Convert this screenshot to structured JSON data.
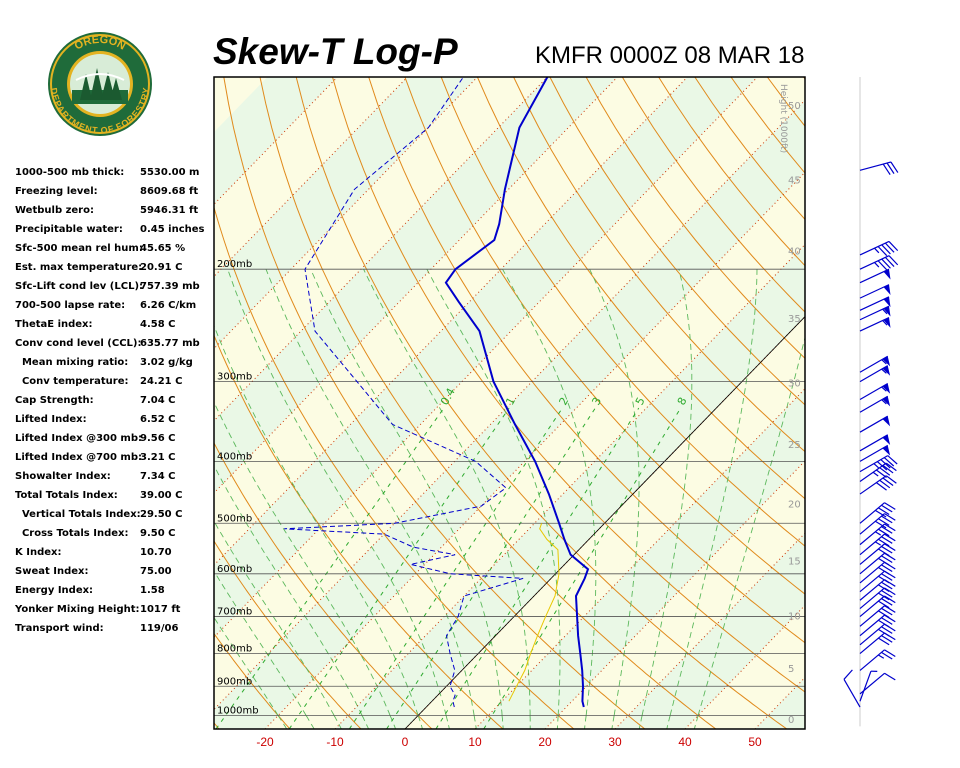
{
  "header": {
    "title": "Skew-T Log-P",
    "subtitle": "KMFR 0000Z 08 MAR 18"
  },
  "logo": {
    "top_text": "OREGON",
    "bottom_text": "DEPARTMENT OF FORESTRY",
    "ring_color": "#1f6b3a",
    "gold_color": "#e3b321"
  },
  "indices": [
    {
      "label": "1000-500 mb thick:",
      "value": "5530.00 m"
    },
    {
      "label": "Freezing level:",
      "value": "8609.68 ft"
    },
    {
      "label": "Wetbulb zero:",
      "value": "5946.31 ft"
    },
    {
      "label": "Precipitable water:",
      "value": "0.45 inches"
    },
    {
      "label": "Sfc-500 mean rel hum:",
      "value": "45.65 %"
    },
    {
      "label": "Est. max temperature:",
      "value": "20.91 C"
    },
    {
      "label": "Sfc-Lift cond lev (LCL):",
      "value": "757.39 mb"
    },
    {
      "label": "700-500 lapse rate:",
      "value": "6.26 C/km"
    },
    {
      "label": "ThetaE index:",
      "value": "4.58 C"
    },
    {
      "label": "Conv cond level (CCL):",
      "value": "635.77 mb"
    },
    {
      "label": "  Mean mixing ratio:",
      "value": "3.02 g/kg"
    },
    {
      "label": "  Conv temperature:",
      "value": "24.21 C"
    },
    {
      "label": "Cap Strength:",
      "value": "7.04 C"
    },
    {
      "label": "Lifted Index:",
      "value": "6.52 C"
    },
    {
      "label": "Lifted Index @300 mb:",
      "value": "9.56 C"
    },
    {
      "label": "Lifted Index @700 mb:",
      "value": "3.21 C"
    },
    {
      "label": "Showalter Index:",
      "value": "7.34 C"
    },
    {
      "label": "Total Totals Index:",
      "value": "39.00 C"
    },
    {
      "label": "  Vertical Totals Index:",
      "value": "29.50 C"
    },
    {
      "label": "  Cross Totals Index:",
      "value": "9.50 C"
    },
    {
      "label": "K Index:",
      "value": "10.70"
    },
    {
      "label": "Sweat Index:",
      "value": "75.00"
    },
    {
      "label": "Energy Index:",
      "value": "1.58"
    },
    {
      "label": "Yonker Mixing Height:",
      "value": "1017 ft"
    },
    {
      "label": "Transport wind:",
      "value": "119/06"
    }
  ],
  "chart_data": {
    "type": "line",
    "title": "Skew-T Log-P",
    "subtitle": "KMFR 0000Z 08 MAR 18",
    "xlabel": "",
    "ylabel": "",
    "xlim": [
      -29,
      56
    ],
    "ylim": [
      1050,
      100
    ],
    "x_ticks": [
      -20,
      -10,
      0,
      10,
      20,
      30,
      40,
      50
    ],
    "x_tick_labels": [
      "-20",
      "-10",
      "0",
      "10",
      "20",
      "30",
      "40",
      "50"
    ],
    "pressure_levels": [
      200,
      300,
      400,
      500,
      600,
      700,
      800,
      900,
      1000
    ],
    "pressure_labels": [
      "200mb",
      "300mb",
      "400mb",
      "500mb",
      "600mb",
      "700mb",
      "800mb",
      "900mb",
      "1000mb"
    ],
    "height_scale_title": "Height (1000ft)",
    "height_ticks": [
      0,
      5,
      10,
      15,
      20,
      25,
      30,
      35,
      40,
      45,
      50
    ],
    "height_tick_labels": [
      "0",
      "5",
      "10",
      "15",
      "20",
      "25",
      "30",
      "35",
      "40",
      "45",
      "50"
    ],
    "mixing_ratio_labels": [
      "0.4",
      "1",
      "2",
      "3",
      "5",
      "8"
    ],
    "series": [
      {
        "name": "",
        "color": "#0000cc",
        "style": "solid",
        "points": [
          {
            "p": 970,
            "t": 22.5
          },
          {
            "p": 950,
            "t": 21.5
          },
          {
            "p": 900,
            "t": 19.5
          },
          {
            "p": 850,
            "t": 17.2
          },
          {
            "p": 800,
            "t": 14.6
          },
          {
            "p": 750,
            "t": 11.8
          },
          {
            "p": 700,
            "t": 9.0
          },
          {
            "p": 650,
            "t": 6.0
          },
          {
            "p": 610,
            "t": 4.8
          },
          {
            "p": 590,
            "t": 4.0
          },
          {
            "p": 560,
            "t": -0.5
          },
          {
            "p": 530,
            "t": -3.5
          },
          {
            "p": 500,
            "t": -6.5
          },
          {
            "p": 450,
            "t": -12.0
          },
          {
            "p": 400,
            "t": -18.5
          },
          {
            "p": 350,
            "t": -26.5
          },
          {
            "p": 300,
            "t": -35.5
          },
          {
            "p": 250,
            "t": -44.5
          },
          {
            "p": 225,
            "t": -51.5
          },
          {
            "p": 210,
            "t": -56.0
          },
          {
            "p": 200,
            "t": -56.5
          },
          {
            "p": 180,
            "t": -55.0
          },
          {
            "p": 170,
            "t": -56.5
          },
          {
            "p": 150,
            "t": -60.5
          },
          {
            "p": 120,
            "t": -67.0
          },
          {
            "p": 100,
            "t": -70.0
          }
        ]
      },
      {
        "name": "",
        "color": "#0000cc",
        "style": "dashed",
        "points": [
          {
            "p": 970,
            "t": 4.0
          },
          {
            "p": 950,
            "t": 3.0
          },
          {
            "p": 930,
            "t": 2.5
          },
          {
            "p": 900,
            "t": 0.5
          },
          {
            "p": 850,
            "t": -1.0
          },
          {
            "p": 800,
            "t": -4.0
          },
          {
            "p": 750,
            "t": -7.0
          },
          {
            "p": 700,
            "t": -8.0
          },
          {
            "p": 650,
            "t": -10.0
          },
          {
            "p": 610,
            "t": -4.0
          },
          {
            "p": 600,
            "t": -15.0
          },
          {
            "p": 580,
            "t": -22.0
          },
          {
            "p": 560,
            "t": -17.0
          },
          {
            "p": 545,
            "t": -24.0
          },
          {
            "p": 520,
            "t": -30.0
          },
          {
            "p": 510,
            "t": -45.0
          },
          {
            "p": 500,
            "t": -30.0
          },
          {
            "p": 470,
            "t": -20.0
          },
          {
            "p": 440,
            "t": -19.0
          },
          {
            "p": 400,
            "t": -27.0
          },
          {
            "p": 350,
            "t": -44.0
          },
          {
            "p": 300,
            "t": -55.0
          },
          {
            "p": 250,
            "t": -68.0
          },
          {
            "p": 200,
            "t": -78.0
          },
          {
            "p": 150,
            "t": -82.0
          },
          {
            "p": 120,
            "t": -80.0
          },
          {
            "p": 100,
            "t": -82.0
          }
        ]
      },
      {
        "name": "",
        "color": "#e8c800",
        "style": "solid",
        "points": [
          {
            "p": 950,
            "t": 11.0
          },
          {
            "p": 900,
            "t": 10.0
          },
          {
            "p": 850,
            "t": 9.0
          },
          {
            "p": 800,
            "t": 7.5
          },
          {
            "p": 750,
            "t": 6.0
          },
          {
            "p": 700,
            "t": 4.5
          },
          {
            "p": 650,
            "t": 3.0
          },
          {
            "p": 600,
            "t": 0.5
          },
          {
            "p": 550,
            "t": -3.0
          },
          {
            "p": 530,
            "t": -6.0
          },
          {
            "p": 510,
            "t": -8.5
          },
          {
            "p": 500,
            "t": -9.0
          }
        ]
      }
    ],
    "wind_barbs": [
      {
        "p": 970,
        "dir": 150,
        "speed_kt": 10
      },
      {
        "p": 950,
        "dir": 200,
        "speed_kt": 8
      },
      {
        "p": 925,
        "dir": 230,
        "speed_kt": 10
      },
      {
        "p": 850,
        "dir": 230,
        "speed_kt": 25
      },
      {
        "p": 800,
        "dir": 230,
        "speed_kt": 30
      },
      {
        "p": 775,
        "dir": 230,
        "speed_kt": 30
      },
      {
        "p": 750,
        "dir": 230,
        "speed_kt": 30
      },
      {
        "p": 725,
        "dir": 230,
        "speed_kt": 30
      },
      {
        "p": 700,
        "dir": 230,
        "speed_kt": 30
      },
      {
        "p": 680,
        "dir": 230,
        "speed_kt": 30
      },
      {
        "p": 660,
        "dir": 230,
        "speed_kt": 30
      },
      {
        "p": 640,
        "dir": 230,
        "speed_kt": 30
      },
      {
        "p": 620,
        "dir": 230,
        "speed_kt": 30
      },
      {
        "p": 600,
        "dir": 230,
        "speed_kt": 30
      },
      {
        "p": 580,
        "dir": 230,
        "speed_kt": 30
      },
      {
        "p": 560,
        "dir": 230,
        "speed_kt": 35
      },
      {
        "p": 540,
        "dir": 230,
        "speed_kt": 35
      },
      {
        "p": 520,
        "dir": 230,
        "speed_kt": 40
      },
      {
        "p": 500,
        "dir": 230,
        "speed_kt": 40
      },
      {
        "p": 450,
        "dir": 235,
        "speed_kt": 40
      },
      {
        "p": 430,
        "dir": 235,
        "speed_kt": 45
      },
      {
        "p": 415,
        "dir": 240,
        "speed_kt": 45
      },
      {
        "p": 400,
        "dir": 240,
        "speed_kt": 50
      },
      {
        "p": 385,
        "dir": 240,
        "speed_kt": 50
      },
      {
        "p": 360,
        "dir": 240,
        "speed_kt": 50
      },
      {
        "p": 335,
        "dir": 240,
        "speed_kt": 55
      },
      {
        "p": 320,
        "dir": 240,
        "speed_kt": 55
      },
      {
        "p": 300,
        "dir": 240,
        "speed_kt": 55
      },
      {
        "p": 290,
        "dir": 240,
        "speed_kt": 55
      },
      {
        "p": 250,
        "dir": 245,
        "speed_kt": 55
      },
      {
        "p": 240,
        "dir": 245,
        "speed_kt": 55
      },
      {
        "p": 232,
        "dir": 245,
        "speed_kt": 50
      },
      {
        "p": 222,
        "dir": 245,
        "speed_kt": 50
      },
      {
        "p": 210,
        "dir": 245,
        "speed_kt": 50
      },
      {
        "p": 200,
        "dir": 245,
        "speed_kt": 45
      },
      {
        "p": 190,
        "dir": 245,
        "speed_kt": 45
      },
      {
        "p": 140,
        "dir": 255,
        "speed_kt": 30
      }
    ],
    "colors": {
      "frame": "#000000",
      "dry_adiabat": "#e08a1c",
      "moist_adiabat": "#5cb85c",
      "mixing_ratio": "#2eaa2e",
      "isotherm_label": "#cc0000",
      "isotherm_dotted": "#cc3300",
      "band_green": "#eaf8e6",
      "band_yellow": "#fcfce3",
      "height_label": "#999999",
      "pressure_line": "#555555"
    }
  }
}
